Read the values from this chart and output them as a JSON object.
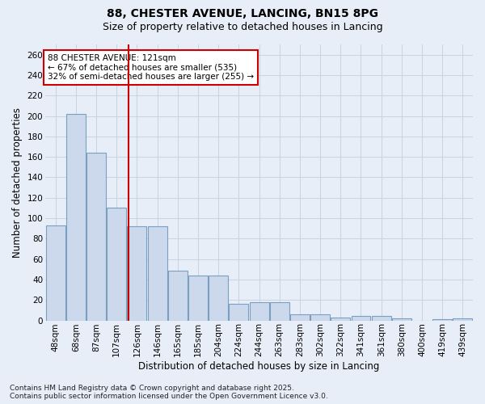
{
  "title_line1": "88, CHESTER AVENUE, LANCING, BN15 8PG",
  "title_line2": "Size of property relative to detached houses in Lancing",
  "xlabel": "Distribution of detached houses by size in Lancing",
  "ylabel": "Number of detached properties",
  "categories": [
    "48sqm",
    "68sqm",
    "87sqm",
    "107sqm",
    "126sqm",
    "146sqm",
    "165sqm",
    "185sqm",
    "204sqm",
    "224sqm",
    "244sqm",
    "263sqm",
    "283sqm",
    "302sqm",
    "322sqm",
    "341sqm",
    "361sqm",
    "380sqm",
    "400sqm",
    "419sqm",
    "439sqm"
  ],
  "values": [
    93,
    202,
    164,
    110,
    92,
    92,
    49,
    44,
    44,
    16,
    18,
    18,
    6,
    6,
    3,
    4,
    4,
    2,
    0,
    1,
    2
  ],
  "bar_color": "#ccd9ec",
  "bar_edge_color": "#7a9fc0",
  "grid_color": "#c8d4e4",
  "annotation_box_text": "88 CHESTER AVENUE: 121sqm\n← 67% of detached houses are smaller (535)\n32% of semi-detached houses are larger (255) →",
  "annotation_box_color": "#ffffff",
  "annotation_box_edge_color": "#cc0000",
  "vline_color": "#cc0000",
  "vline_pos": 3.575,
  "ylim": [
    0,
    270
  ],
  "yticks": [
    0,
    20,
    40,
    60,
    80,
    100,
    120,
    140,
    160,
    180,
    200,
    220,
    240,
    260
  ],
  "footer_text": "Contains HM Land Registry data © Crown copyright and database right 2025.\nContains public sector information licensed under the Open Government Licence v3.0.",
  "bg_color": "#e8eef8",
  "title_fontsize": 10,
  "subtitle_fontsize": 9,
  "axis_label_fontsize": 8.5,
  "tick_fontsize": 7.5,
  "annotation_fontsize": 7.5,
  "footer_fontsize": 6.5
}
